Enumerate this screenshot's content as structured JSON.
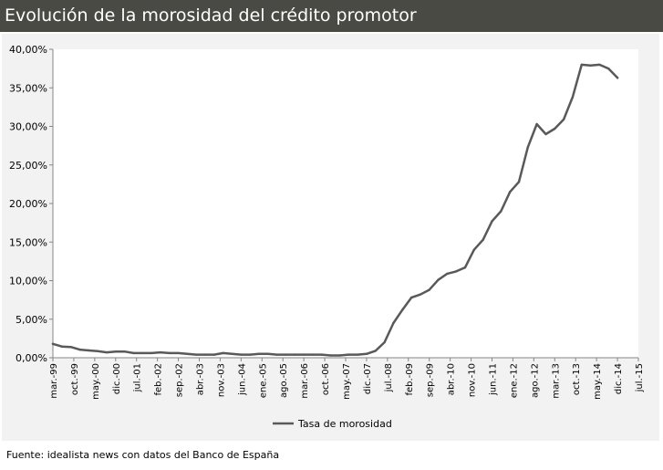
{
  "header": {
    "title": "Evolución de la morosidad del crédito promotor"
  },
  "footer": {
    "source": "Fuente: idealista news con datos del Banco de España"
  },
  "colors": {
    "title_bar": "#4a4a44",
    "panel": "#f2f2f2",
    "series": "#595959"
  },
  "chart_data": {
    "type": "line",
    "title": "",
    "xlabel": "",
    "ylabel": "",
    "ylim": [
      0,
      40
    ],
    "ytick_labels": [
      "0,00%",
      "5,00%",
      "10,00%",
      "15,00%",
      "20,00%",
      "25,00%",
      "30,00%",
      "35,00%",
      "40,00%"
    ],
    "xtick_labels": [
      "mar.-99",
      "oct.-99",
      "may.-00",
      "dic.-00",
      "jul.-01",
      "feb.-02",
      "sep.-02",
      "abr.-03",
      "nov.-03",
      "jun.-04",
      "ene.-05",
      "ago.-05",
      "mar.-06",
      "oct.-06",
      "may.-07",
      "dic.-07",
      "jul.-08",
      "feb.-09",
      "sep.-09",
      "abr.-10",
      "nov.-10",
      "jun.-11",
      "ene.-12",
      "ago.-12",
      "mar.-13",
      "oct.-13",
      "may.-14",
      "dic.-14",
      "jul.-15"
    ],
    "grid": false,
    "legend_position": "bottom",
    "series": [
      {
        "name": "Tasa de morosidad",
        "x": [
          "mar.-99",
          "jun.-99",
          "sep.-99",
          "dic.-99",
          "mar.-00",
          "jun.-00",
          "sep.-00",
          "dic.-00",
          "mar.-01",
          "jun.-01",
          "sep.-01",
          "dic.-01",
          "mar.-02",
          "jun.-02",
          "sep.-02",
          "dic.-02",
          "mar.-03",
          "jun.-03",
          "sep.-03",
          "dic.-03",
          "mar.-04",
          "jun.-04",
          "sep.-04",
          "dic.-04",
          "mar.-05",
          "jun.-05",
          "sep.-05",
          "dic.-05",
          "mar.-06",
          "jun.-06",
          "sep.-06",
          "dic.-06",
          "mar.-07",
          "jun.-07",
          "sep.-07",
          "dic.-07",
          "mar.-08",
          "jun.-08",
          "sep.-08",
          "dic.-08",
          "mar.-09",
          "jun.-09",
          "sep.-09",
          "dic.-09",
          "mar.-10",
          "jun.-10",
          "sep.-10",
          "dic.-10",
          "mar.-11",
          "jun.-11",
          "sep.-11",
          "dic.-11",
          "mar.-12",
          "jun.-12",
          "sep.-12",
          "dic.-12",
          "mar.-13",
          "jun.-13",
          "sep.-13",
          "dic.-13",
          "mar.-14",
          "jun.-14",
          "sep.-14",
          "dic.-14"
        ],
        "values": [
          1.8,
          1.45,
          1.4,
          1.05,
          0.95,
          0.85,
          0.7,
          0.8,
          0.8,
          0.6,
          0.6,
          0.6,
          0.7,
          0.6,
          0.6,
          0.5,
          0.4,
          0.4,
          0.4,
          0.6,
          0.5,
          0.4,
          0.4,
          0.5,
          0.5,
          0.4,
          0.4,
          0.4,
          0.4,
          0.4,
          0.4,
          0.3,
          0.3,
          0.4,
          0.4,
          0.5,
          0.9,
          2.0,
          4.5,
          6.2,
          7.8,
          8.2,
          8.8,
          10.1,
          10.9,
          11.2,
          11.7,
          14.0,
          15.3,
          17.7,
          19.0,
          21.5,
          22.8,
          27.3,
          30.3,
          29.0,
          29.7,
          30.9,
          33.8,
          38.0,
          37.9,
          38.0,
          37.5,
          36.3
        ]
      }
    ]
  }
}
